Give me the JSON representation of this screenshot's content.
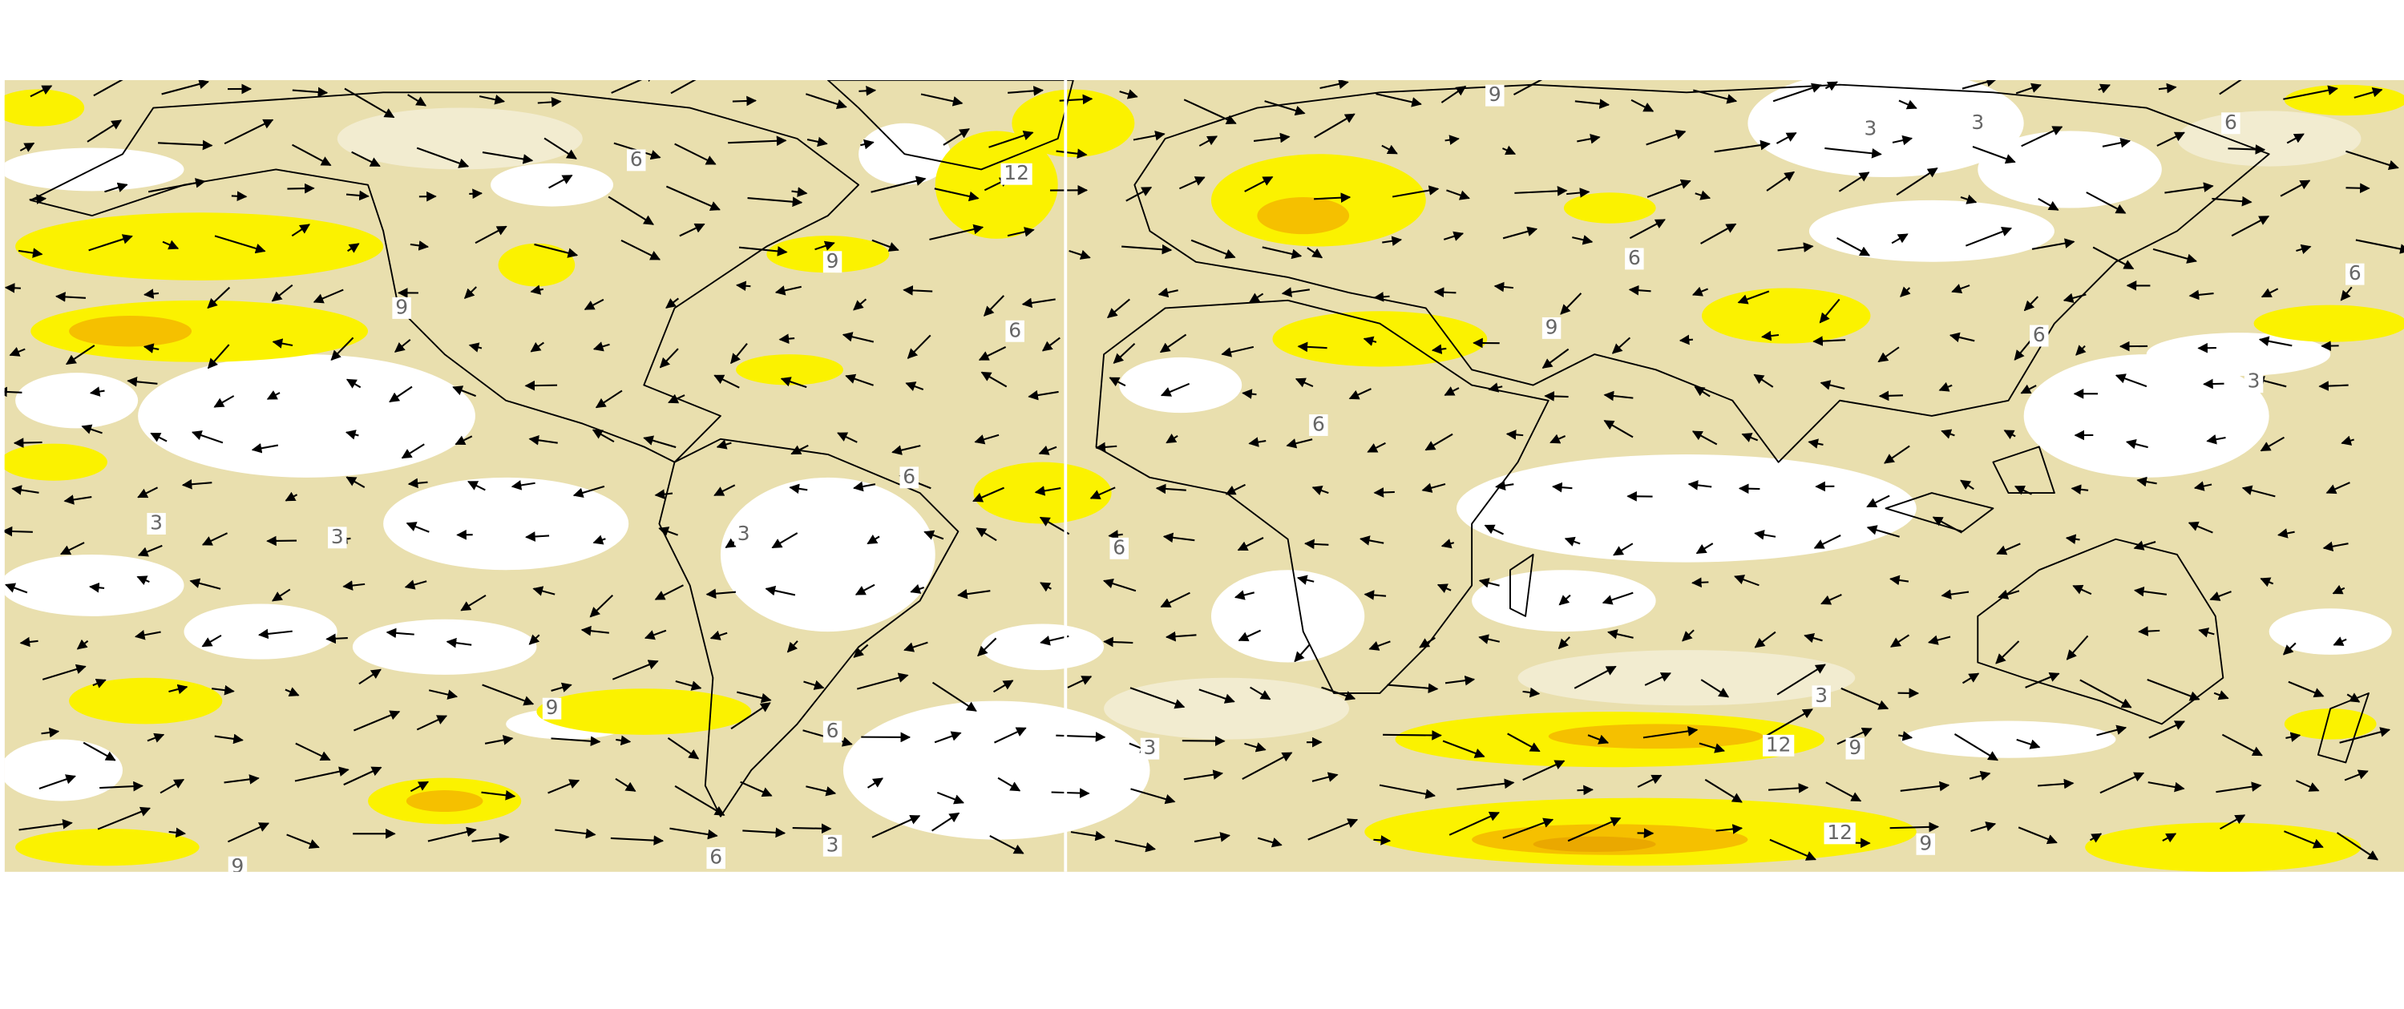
{
  "map": {
    "contour_labels": [
      "9",
      "3",
      "3",
      "6",
      "6",
      "12",
      "9",
      "6",
      "6",
      "9",
      "6",
      "9",
      "6",
      "3",
      "6",
      "6",
      "3",
      "3",
      "3",
      "6",
      "3",
      "9",
      "6",
      "12",
      "9",
      "3",
      "12",
      "9",
      "3",
      "6",
      "9"
    ]
  }
}
